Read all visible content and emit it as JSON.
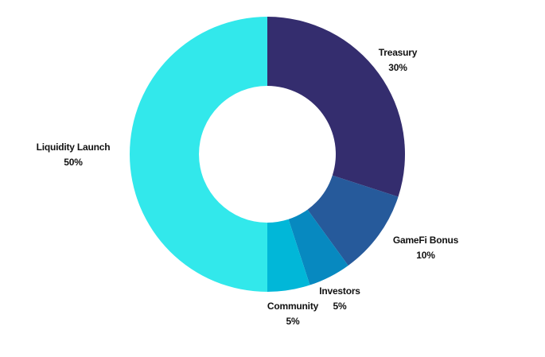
{
  "chart_data": {
    "type": "pie",
    "style": "donut",
    "labels": [
      "Treasury",
      "GameFi Bonus",
      "Investors",
      "Community",
      "Liquidity Launch"
    ],
    "values": [
      30,
      10,
      5,
      5,
      50
    ],
    "value_labels": [
      "30%",
      "10%",
      "5%",
      "5%",
      "50%"
    ],
    "colors": [
      "#342d6e",
      "#265a9b",
      "#0789c0",
      "#01b7d8",
      "#32e8eb"
    ],
    "label_text_color": "#111111",
    "start_angle": "top, clockwise"
  }
}
